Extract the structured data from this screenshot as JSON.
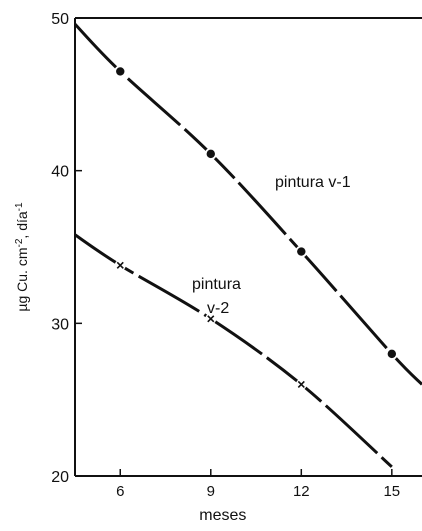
{
  "chart_data": {
    "type": "line",
    "title": "",
    "xlabel": "meses",
    "ylabel_parts": [
      "µg Cu. cm",
      "-2",
      ", día",
      "-1"
    ],
    "xlim": [
      4.5,
      16
    ],
    "ylim": [
      20,
      50
    ],
    "x_ticks": [
      6,
      9,
      12,
      15
    ],
    "y_ticks": [
      20,
      30,
      40,
      50
    ],
    "x_tick_labels": [
      "6",
      "9",
      "12",
      "15"
    ],
    "y_tick_labels": [
      "20",
      "30",
      "40",
      "50"
    ],
    "grid": false,
    "series": [
      {
        "name": "pintura v-1",
        "label_lines": [
          "pintura v-1"
        ],
        "marker": "dot",
        "color": "#111111",
        "points": [
          {
            "x": 6,
            "y": 46.5
          },
          {
            "x": 9,
            "y": 41.1
          },
          {
            "x": 12,
            "y": 34.7
          },
          {
            "x": 15,
            "y": 28.0
          }
        ],
        "curve": [
          {
            "x": 4.5,
            "y": 49.6
          },
          {
            "x": 6,
            "y": 46.5
          },
          {
            "x": 9,
            "y": 41.1
          },
          {
            "x": 12,
            "y": 34.7
          },
          {
            "x": 15,
            "y": 28.0
          },
          {
            "x": 16,
            "y": 26.0
          }
        ]
      },
      {
        "name": "pintura v-2",
        "label_lines": [
          "pintura",
          "v-2"
        ],
        "marker": "cross",
        "color": "#111111",
        "points": [
          {
            "x": 6,
            "y": 33.8
          },
          {
            "x": 9,
            "y": 30.3
          },
          {
            "x": 12,
            "y": 26.0
          }
        ],
        "curve": [
          {
            "x": 4.5,
            "y": 35.8
          },
          {
            "x": 6,
            "y": 33.8
          },
          {
            "x": 9,
            "y": 30.3
          },
          {
            "x": 12,
            "y": 26.0
          },
          {
            "x": 15,
            "y": 20.6
          }
        ]
      }
    ]
  }
}
